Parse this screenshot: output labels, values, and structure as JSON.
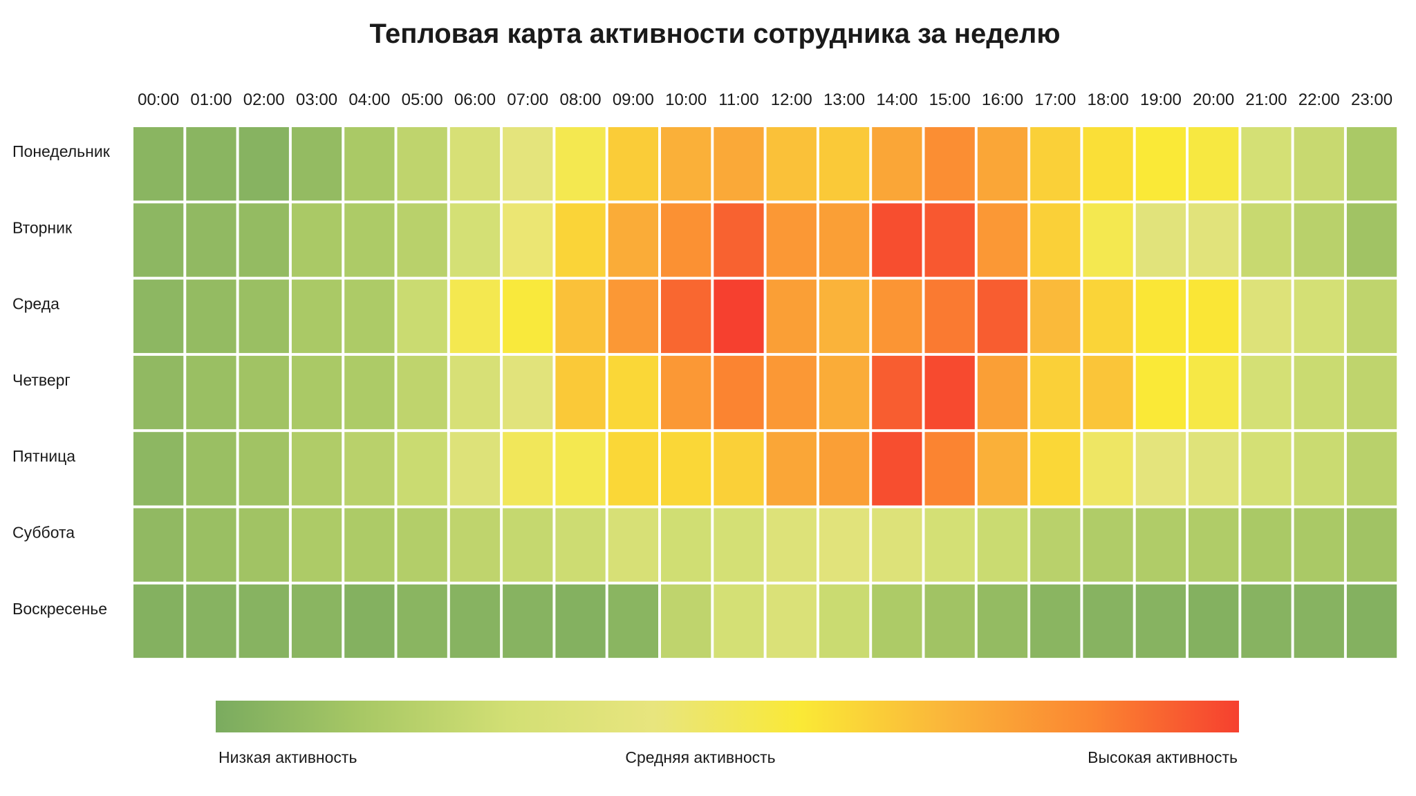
{
  "chart_data": {
    "type": "heatmap",
    "title": "Тепловая карта активности сотрудника за неделю",
    "x": [
      "00:00",
      "01:00",
      "02:00",
      "03:00",
      "04:00",
      "05:00",
      "06:00",
      "07:00",
      "08:00",
      "09:00",
      "10:00",
      "11:00",
      "12:00",
      "13:00",
      "14:00",
      "15:00",
      "16:00",
      "17:00",
      "18:00",
      "19:00",
      "20:00",
      "21:00",
      "22:00",
      "23:00"
    ],
    "y": [
      "Понедельник",
      "Вторник",
      "Среда",
      "Четверг",
      "Пятница",
      "Суббота",
      "Воскресенье"
    ],
    "values": [
      [
        0.05,
        0.05,
        0.04,
        0.08,
        0.15,
        0.22,
        0.32,
        0.4,
        0.52,
        0.65,
        0.73,
        0.75,
        0.68,
        0.66,
        0.76,
        0.83,
        0.76,
        0.64,
        0.6,
        0.57,
        0.55,
        0.3,
        0.25,
        0.15
      ],
      [
        0.06,
        0.07,
        0.08,
        0.15,
        0.16,
        0.2,
        0.3,
        0.45,
        0.63,
        0.74,
        0.82,
        0.93,
        0.8,
        0.78,
        0.97,
        0.95,
        0.8,
        0.64,
        0.52,
        0.38,
        0.38,
        0.25,
        0.2,
        0.12
      ],
      [
        0.06,
        0.08,
        0.1,
        0.15,
        0.16,
        0.26,
        0.52,
        0.56,
        0.68,
        0.8,
        0.92,
        1.0,
        0.78,
        0.72,
        0.81,
        0.88,
        0.94,
        0.7,
        0.63,
        0.58,
        0.58,
        0.36,
        0.3,
        0.22
      ],
      [
        0.07,
        0.1,
        0.12,
        0.15,
        0.16,
        0.22,
        0.32,
        0.38,
        0.66,
        0.62,
        0.8,
        0.86,
        0.8,
        0.74,
        0.94,
        0.98,
        0.78,
        0.64,
        0.67,
        0.57,
        0.54,
        0.3,
        0.26,
        0.22
      ],
      [
        0.06,
        0.1,
        0.12,
        0.17,
        0.2,
        0.26,
        0.36,
        0.5,
        0.52,
        0.62,
        0.62,
        0.64,
        0.76,
        0.78,
        0.97,
        0.86,
        0.73,
        0.62,
        0.48,
        0.4,
        0.37,
        0.3,
        0.26,
        0.2
      ],
      [
        0.07,
        0.1,
        0.12,
        0.16,
        0.16,
        0.18,
        0.22,
        0.24,
        0.27,
        0.32,
        0.28,
        0.3,
        0.36,
        0.38,
        0.36,
        0.3,
        0.26,
        0.2,
        0.17,
        0.17,
        0.17,
        0.15,
        0.15,
        0.12
      ],
      [
        0.03,
        0.04,
        0.04,
        0.05,
        0.03,
        0.05,
        0.04,
        0.04,
        0.03,
        0.05,
        0.22,
        0.3,
        0.34,
        0.26,
        0.16,
        0.12,
        0.08,
        0.05,
        0.04,
        0.04,
        0.03,
        0.04,
        0.04,
        0.03
      ]
    ],
    "colorscale": [
      "#7aab5f",
      "#a8c865",
      "#d2df74",
      "#e8e57e",
      "#fae936",
      "#fab53a",
      "#fb8531",
      "#f6402f"
    ],
    "legend": {
      "low": "Низкая активность",
      "mid": "Средняя активность",
      "high": "Высокая активность"
    }
  }
}
